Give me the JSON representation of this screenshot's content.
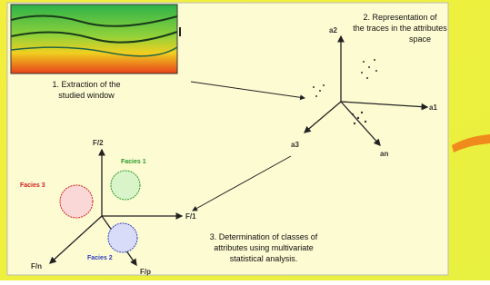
{
  "steps": [
    "1. Extraction of the",
    "studied window",
    "2. Representation of",
    "the traces in the attributes",
    "space",
    "3. Determination of classes of",
    "attributes using multivariate",
    "statistical analysis."
  ],
  "attribute_axes": [
    "a2",
    "a1",
    "a3",
    "an"
  ],
  "facies_axes": [
    "F/2",
    "F/1",
    "F/n",
    "F/p"
  ],
  "facies": [
    "Facies 1",
    "Facies 2",
    "Facies 3"
  ]
}
